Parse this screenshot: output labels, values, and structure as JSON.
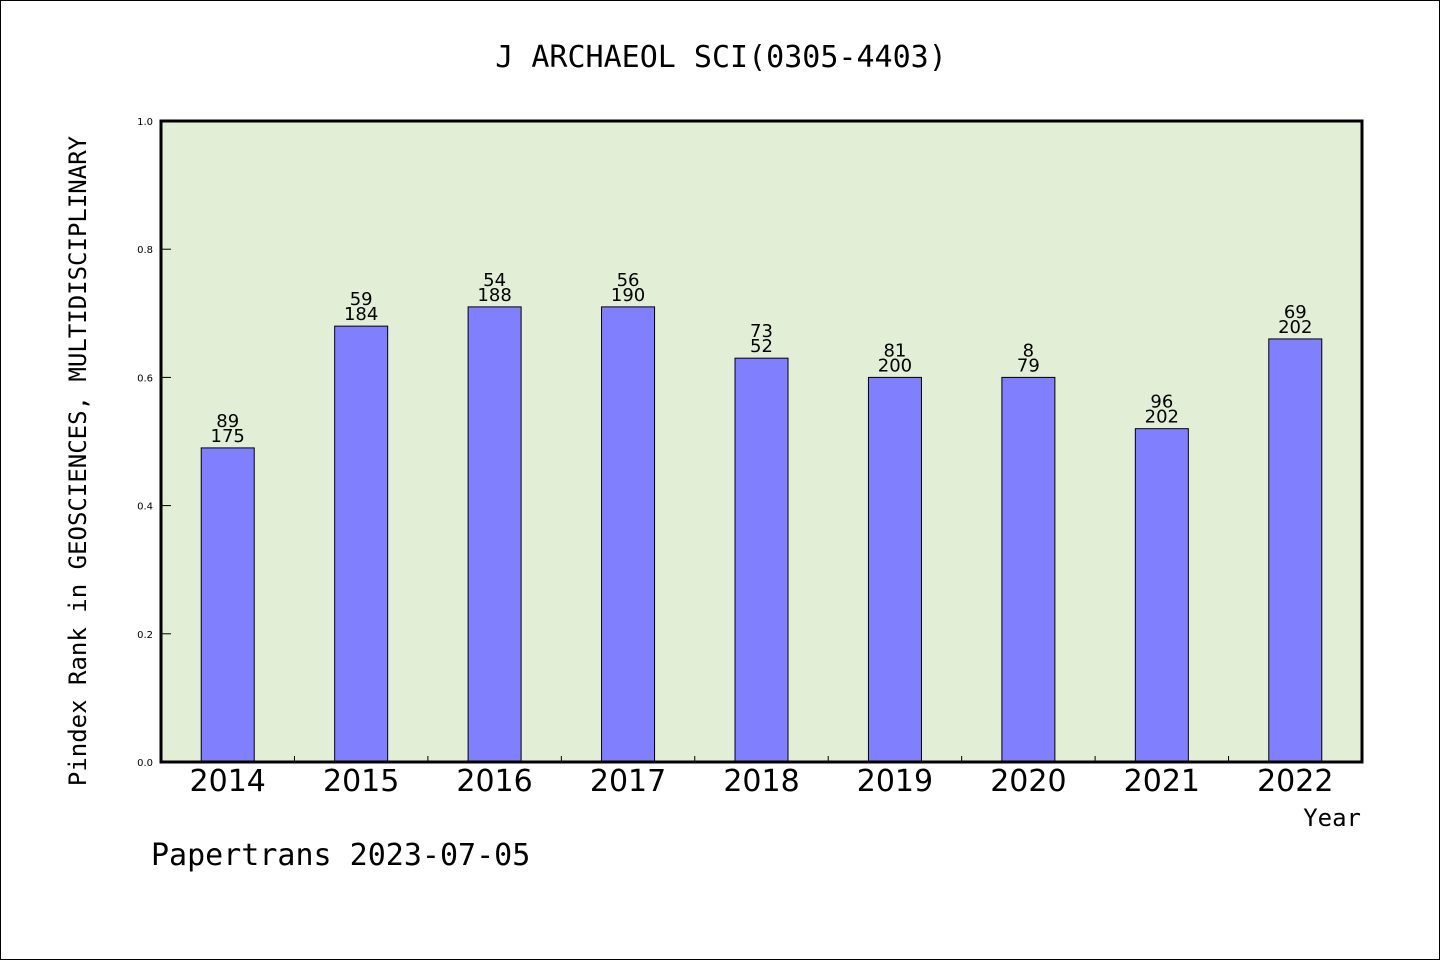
{
  "footer": "Papertrans 2023-07-05",
  "colors": {
    "plot_background": "#e2efd6",
    "bar_fill": "#8080ff",
    "bar_stroke": "#000000"
  },
  "chart_data": {
    "type": "bar",
    "title": "J ARCHAEOL SCI(0305-4403)",
    "xlabel": "Year",
    "ylabel": "Pindex Rank in GEOSCIENCES, MULTIDISCIPLINARY",
    "ylim": [
      0,
      1.0
    ],
    "yticks": [
      "0.0",
      "0.2",
      "0.4",
      "0.6",
      "0.8",
      "1.0"
    ],
    "grid": false,
    "categories": [
      "2014",
      "2015",
      "2016",
      "2017",
      "2018",
      "2019",
      "2020",
      "2021",
      "2022"
    ],
    "values": [
      0.49,
      0.68,
      0.71,
      0.71,
      0.63,
      0.6,
      0.6,
      0.52,
      0.66
    ],
    "label_top": [
      "89",
      "59",
      "54",
      "56",
      "73",
      "81",
      "8",
      "96",
      "69"
    ],
    "label_bottom": [
      "175",
      "184",
      "188",
      "190",
      "52",
      "200",
      "79",
      "202",
      "202"
    ]
  }
}
